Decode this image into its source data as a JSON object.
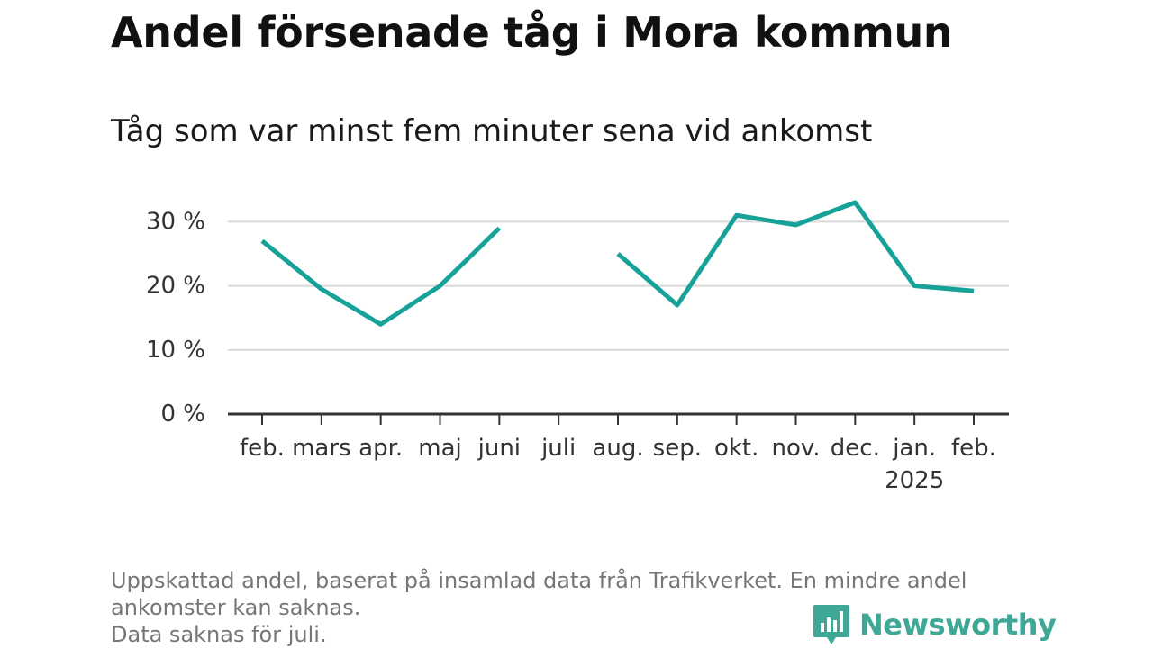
{
  "title": "Andel försenade tåg i Mora kommun",
  "subtitle": "Tåg som var minst fem minuter sena vid ankomst",
  "colors": {
    "line": "#17a299",
    "grid": "#d9d9d9",
    "axis": "#333333",
    "brand": "#3fa796"
  },
  "chart_data": {
    "type": "line",
    "categories": [
      "feb.",
      "mars",
      "apr.",
      "maj",
      "juni",
      "juli",
      "aug.",
      "sep.",
      "okt.",
      "nov.",
      "dec.",
      "jan.",
      "feb."
    ],
    "year_label": "2025",
    "year_label_category_index": 11,
    "series": [
      {
        "values": [
          27,
          19.5,
          14,
          20,
          29,
          null,
          25,
          17,
          31,
          29.5,
          33,
          20,
          19.2
        ]
      }
    ],
    "y_ticks": [
      0,
      10,
      20,
      30
    ],
    "y_tick_labels": [
      "0 %",
      "10 %",
      "20 %",
      "30 %"
    ],
    "ylim": [
      0,
      33
    ],
    "grid": true,
    "xlabel": "",
    "ylabel": ""
  },
  "footnote": {
    "line1": "Uppskattad andel, baserat på insamlad data från Trafikverket. En mindre andel ankomster kan saknas.",
    "line2": "Data saknas för juli."
  },
  "brand": {
    "name": "Newsworthy",
    "icon": "newsworthy-bar-chart-icon"
  }
}
